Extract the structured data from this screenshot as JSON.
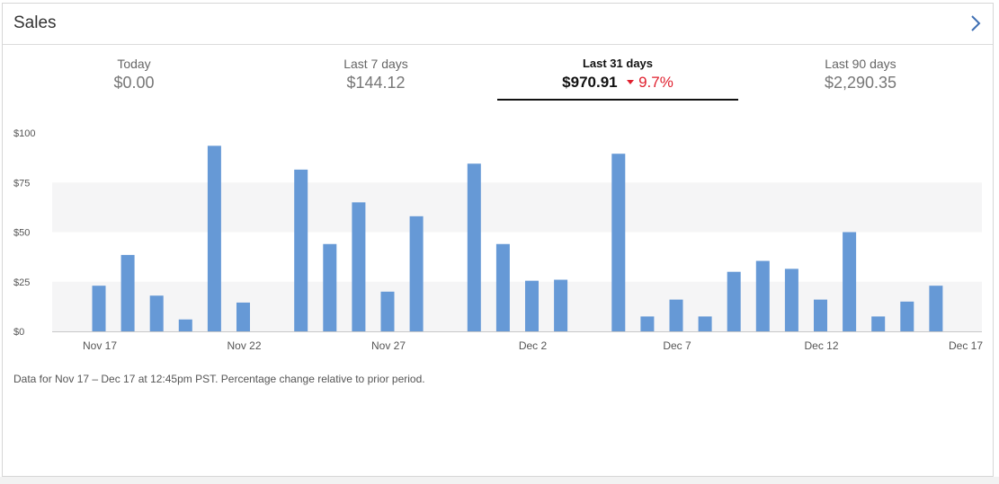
{
  "card": {
    "title": "Sales"
  },
  "header_icon": "chevron-right-icon",
  "tabs": [
    {
      "label": "Today",
      "value": "$0.00",
      "active": false
    },
    {
      "label": "Last 7 days",
      "value": "$144.12",
      "active": false
    },
    {
      "label": "Last 31 days",
      "value": "$970.91",
      "active": true,
      "change": "9.7%",
      "change_direction": "down"
    },
    {
      "label": "Last 90 days",
      "value": "$2,290.35",
      "active": false
    }
  ],
  "colors": {
    "bar": "#6699d6",
    "band": "#f5f5f6",
    "change_down": "#e0202e",
    "active_underline": "#111111"
  },
  "chart_data": {
    "type": "bar",
    "title": "",
    "xlabel": "",
    "ylabel": "",
    "ylim": [
      0,
      100
    ],
    "y_ticks": [
      "$100",
      "$75",
      "$50",
      "$25",
      "$0"
    ],
    "x_ticks": [
      "Nov 17",
      "Nov 22",
      "Nov 27",
      "Dec 2",
      "Dec 7",
      "Dec 12",
      "Dec 17"
    ],
    "grid": "alternating horizontal bands",
    "categories": [
      "Nov 17",
      "Nov 18",
      "Nov 19",
      "Nov 20",
      "Nov 21",
      "Nov 22",
      "Nov 23",
      "Nov 24",
      "Nov 25",
      "Nov 26",
      "Nov 27",
      "Nov 28",
      "Nov 29",
      "Nov 30",
      "Dec 1",
      "Dec 2",
      "Dec 3",
      "Dec 4",
      "Dec 5",
      "Dec 6",
      "Dec 7",
      "Dec 8",
      "Dec 9",
      "Dec 10",
      "Dec 11",
      "Dec 12",
      "Dec 13",
      "Dec 14",
      "Dec 15",
      "Dec 16",
      "Dec 17"
    ],
    "values": [
      23,
      38.5,
      18,
      6,
      93.5,
      14.5,
      0,
      81.5,
      44,
      65,
      20,
      58,
      0,
      84.5,
      44,
      25.5,
      26,
      0,
      89.5,
      7.5,
      16,
      7.5,
      30,
      35.5,
      31.5,
      16,
      50,
      7.5,
      15,
      23,
      0
    ]
  },
  "footnote": "Data for Nov 17 – Dec 17 at 12:45pm PST. Percentage change relative to prior period."
}
